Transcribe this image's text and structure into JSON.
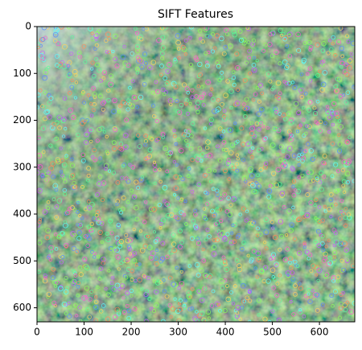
{
  "chart_data": {
    "type": "image",
    "title": "SIFT Features",
    "xlim": [
      0,
      675
    ],
    "xticks": [
      0,
      100,
      200,
      300,
      400,
      500,
      600
    ],
    "ylim": [
      630,
      0
    ],
    "yticks": [
      0,
      100,
      200,
      300,
      400,
      500,
      600
    ]
  }
}
